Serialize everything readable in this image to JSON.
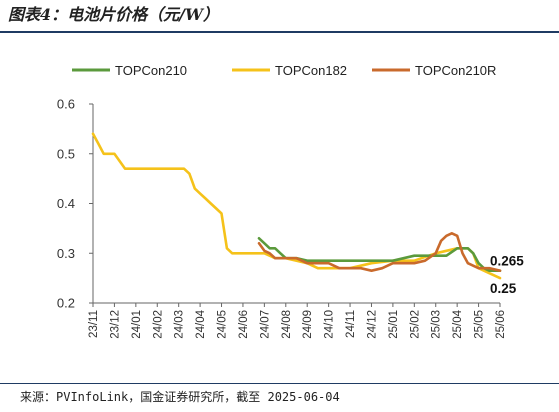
{
  "figure_title": "图表4：电池片价格（元/W）",
  "source_note": "来源：PVInfoLink，国金证券研究所，截至 2025-06-04",
  "chart_data": {
    "type": "line",
    "title": "",
    "xlabel": "",
    "ylabel": "",
    "ylim": [
      0.2,
      0.6
    ],
    "yticks": [
      "0.2",
      "0.3",
      "0.4",
      "0.5",
      "0.6"
    ],
    "x_tick_labels": [
      "23/11",
      "23/12",
      "24/01",
      "24/02",
      "24/03",
      "24/04",
      "24/05",
      "24/06",
      "24/07",
      "24/08",
      "24/09",
      "24/10",
      "24/11",
      "24/12",
      "25/01",
      "25/02",
      "25/03",
      "25/04",
      "25/05",
      "25/06"
    ],
    "x_range": [
      0,
      19
    ],
    "grid": false,
    "legend_position": "top",
    "series": [
      {
        "name": "TOPCon210",
        "color": "#5b9a3c",
        "x": [
          7.75,
          8.0,
          8.25,
          8.5,
          8.75,
          9.0,
          9.5,
          10.0,
          12.0,
          13.0,
          14.0,
          15.0,
          16.0,
          16.5,
          17.0,
          17.5,
          17.75,
          18.0,
          18.25,
          18.5,
          19.0
        ],
        "y": [
          0.33,
          0.32,
          0.31,
          0.31,
          0.3,
          0.29,
          0.29,
          0.285,
          0.285,
          0.285,
          0.285,
          0.295,
          0.295,
          0.295,
          0.31,
          0.31,
          0.3,
          0.28,
          0.27,
          0.265,
          0.265
        ]
      },
      {
        "name": "TOPCon182",
        "color": "#f5c21a",
        "x": [
          0,
          0.25,
          0.5,
          0.75,
          1.0,
          1.5,
          2.0,
          3.0,
          4.0,
          4.25,
          4.5,
          4.75,
          5.0,
          5.25,
          5.5,
          5.75,
          6.0,
          6.25,
          6.5,
          6.75,
          7.0,
          7.5,
          8.0,
          8.5,
          9.0,
          10.0,
          10.5,
          11.0,
          12.0,
          13.0,
          14.0,
          15.0,
          16.0,
          16.5,
          17.0,
          17.5,
          17.75,
          18.0,
          18.5,
          19.0
        ],
        "y": [
          0.54,
          0.52,
          0.5,
          0.5,
          0.5,
          0.47,
          0.47,
          0.47,
          0.47,
          0.47,
          0.46,
          0.43,
          0.42,
          0.41,
          0.4,
          0.39,
          0.38,
          0.31,
          0.3,
          0.3,
          0.3,
          0.3,
          0.3,
          0.29,
          0.29,
          0.28,
          0.27,
          0.27,
          0.27,
          0.28,
          0.285,
          0.285,
          0.3,
          0.305,
          0.31,
          0.31,
          0.3,
          0.27,
          0.26,
          0.25
        ]
      },
      {
        "name": "TOPCon210R",
        "color": "#c96a2c",
        "x": [
          7.75,
          8.0,
          8.25,
          8.5,
          9.0,
          9.5,
          10.0,
          11.0,
          11.5,
          12.0,
          12.5,
          13.0,
          13.5,
          14.0,
          15.0,
          15.5,
          16.0,
          16.25,
          16.5,
          16.75,
          17.0,
          17.25,
          17.5,
          17.75,
          18.0,
          18.5,
          19.0
        ],
        "y": [
          0.32,
          0.305,
          0.3,
          0.29,
          0.29,
          0.29,
          0.28,
          0.28,
          0.27,
          0.27,
          0.27,
          0.265,
          0.27,
          0.28,
          0.28,
          0.285,
          0.3,
          0.325,
          0.335,
          0.34,
          0.335,
          0.3,
          0.28,
          0.275,
          0.27,
          0.27,
          0.265
        ]
      }
    ],
    "annotations": [
      {
        "text": "0.265",
        "x": 19.0,
        "y": 0.265
      },
      {
        "text": "0.25",
        "x": 19.0,
        "y": 0.25
      }
    ]
  }
}
